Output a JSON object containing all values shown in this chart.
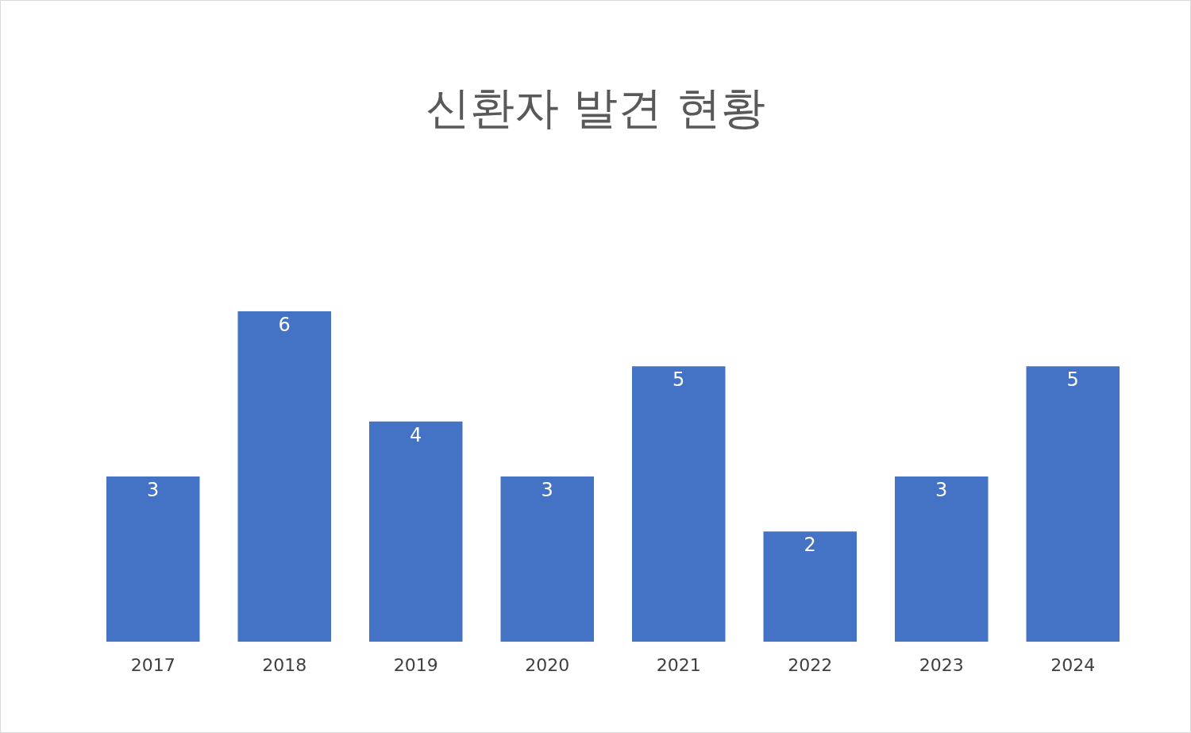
{
  "chart_data": {
    "type": "bar",
    "title": "신환자 발견 현황",
    "categories": [
      "2017",
      "2018",
      "2019",
      "2020",
      "2021",
      "2022",
      "2023",
      "2024"
    ],
    "values": [
      3,
      6,
      4,
      3,
      5,
      2,
      3,
      5
    ],
    "color": "#4472c4",
    "data_labels": true,
    "legend": false
  }
}
